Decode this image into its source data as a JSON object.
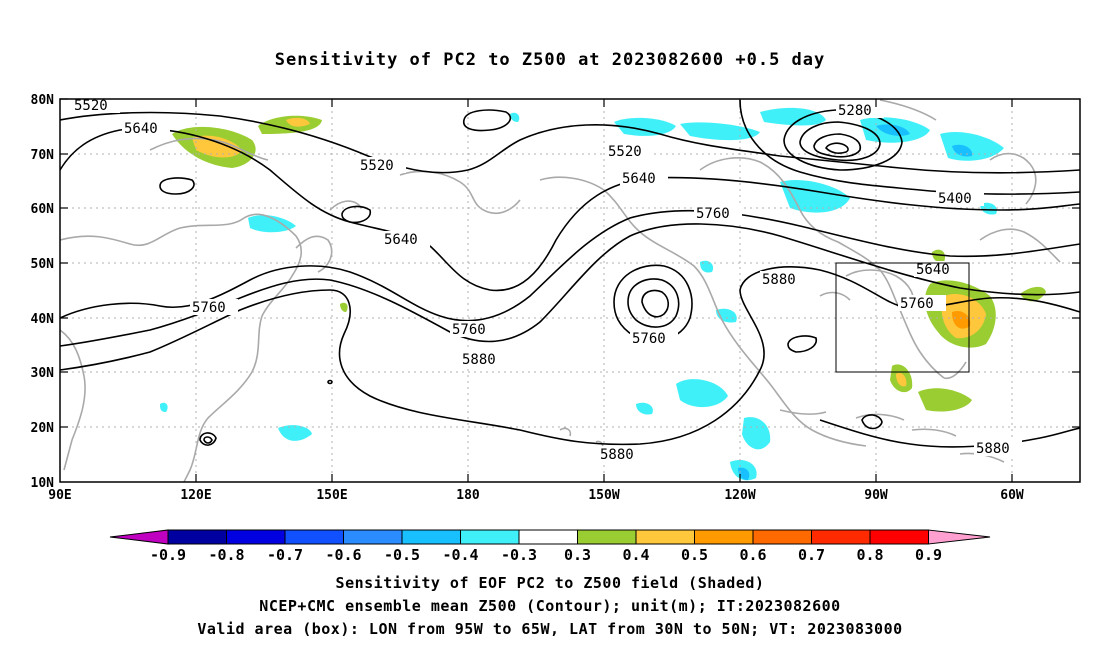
{
  "title": "Sensitivity of PC2 to Z500 at 2023082600 +0.5 day",
  "axes": {
    "lat_labels": [
      "80N",
      "70N",
      "60N",
      "50N",
      "40N",
      "30N",
      "20N",
      "10N"
    ],
    "lon_labels": [
      "90E",
      "120E",
      "150E",
      "180",
      "150W",
      "120W",
      "90W",
      "60W"
    ],
    "lat_range": [
      10,
      80
    ],
    "lon_range": [
      "90E",
      "45W"
    ],
    "grid": "dotted"
  },
  "contours": {
    "unit": "m",
    "labels": [
      "5520",
      "5640",
      "5520",
      "5280",
      "5520",
      "5640",
      "5400",
      "5760",
      "5640",
      "5640",
      "5880",
      "5760",
      "5760",
      "5760",
      "5760",
      "5880",
      "5880",
      "5880"
    ]
  },
  "valid_box": {
    "lon_from": "95W",
    "lon_to": "65W",
    "lat_from": "30N",
    "lat_to": "50N"
  },
  "colorbar": {
    "labels": [
      "-0.9",
      "-0.8",
      "-0.7",
      "-0.6",
      "-0.5",
      "-0.4",
      "-0.3",
      "0.3",
      "0.4",
      "0.5",
      "0.6",
      "0.7",
      "0.8",
      "0.9"
    ],
    "colors": [
      "#0000a0",
      "#0000e0",
      "#1050ff",
      "#2a8cff",
      "#18c0ff",
      "#40f0f8",
      "#ffffff",
      "#9acd32",
      "#ffc83c",
      "#ff9a00",
      "#ff6a00",
      "#ff2a00",
      "#ff0000"
    ],
    "low_end_color": "#c000c0",
    "high_end_color": "#ffa0d0"
  },
  "footer": {
    "line1": "Sensitivity of EOF PC2 to Z500 field (Shaded)",
    "line2": "NCEP+CMC ensemble mean Z500 (Contour); unit(m); IT:2023082600",
    "line3": "Valid area (box): LON from 95W to 65W, LAT from 30N to 50N; VT: 2023083000"
  }
}
